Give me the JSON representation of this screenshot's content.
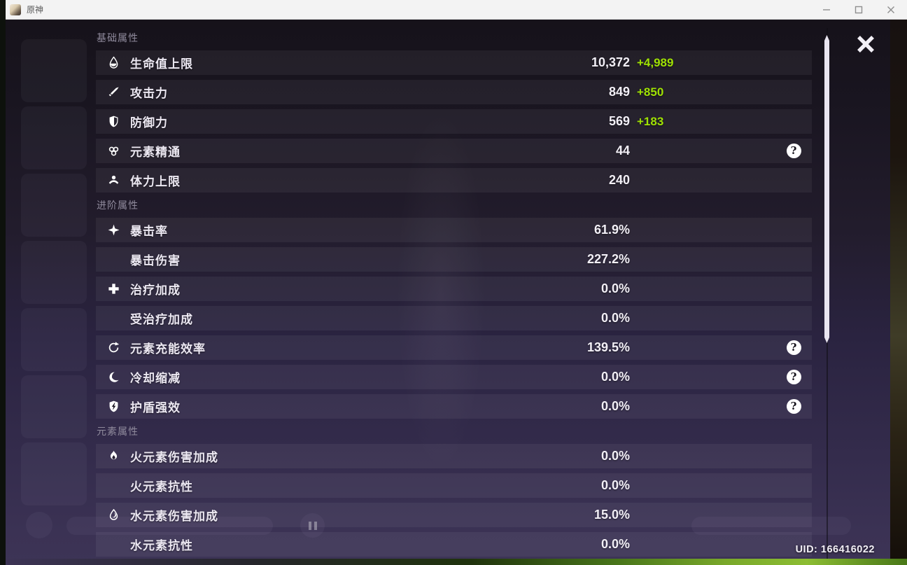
{
  "titlebar": {
    "title": "原神"
  },
  "panel": {
    "sections": [
      {
        "title": "基础属性",
        "rows": [
          {
            "icon": "hp-icon",
            "label": "生命值上限",
            "value": "10,372",
            "bonus": "+4,989",
            "help": false
          },
          {
            "icon": "atk-icon",
            "label": "攻击力",
            "value": "849",
            "bonus": "+850",
            "help": false
          },
          {
            "icon": "def-icon",
            "label": "防御力",
            "value": "569",
            "bonus": "+183",
            "help": false
          },
          {
            "icon": "elemental-mastery-icon",
            "label": "元素精通",
            "value": "44",
            "bonus": "",
            "help": true
          },
          {
            "icon": "stamina-icon",
            "label": "体力上限",
            "value": "240",
            "bonus": "",
            "help": false
          }
        ]
      },
      {
        "title": "进阶属性",
        "rows": [
          {
            "icon": "crit-rate-icon",
            "label": "暴击率",
            "value": "61.9%",
            "bonus": "",
            "help": false
          },
          {
            "icon": "",
            "label": "暴击伤害",
            "value": "227.2%",
            "bonus": "",
            "help": false
          },
          {
            "icon": "healing-icon",
            "label": "治疗加成",
            "value": "0.0%",
            "bonus": "",
            "help": false
          },
          {
            "icon": "",
            "label": "受治疗加成",
            "value": "0.0%",
            "bonus": "",
            "help": false
          },
          {
            "icon": "energy-recharge-icon",
            "label": "元素充能效率",
            "value": "139.5%",
            "bonus": "",
            "help": true
          },
          {
            "icon": "cooldown-icon",
            "label": "冷却缩减",
            "value": "0.0%",
            "bonus": "",
            "help": true
          },
          {
            "icon": "shield-strength-icon",
            "label": "护盾强效",
            "value": "0.0%",
            "bonus": "",
            "help": true
          }
        ]
      },
      {
        "title": "元素属性",
        "rows": [
          {
            "icon": "pyro-icon",
            "label": "火元素伤害加成",
            "value": "0.0%",
            "bonus": "",
            "help": false
          },
          {
            "icon": "",
            "label": "火元素抗性",
            "value": "0.0%",
            "bonus": "",
            "help": false
          },
          {
            "icon": "hydro-icon",
            "label": "水元素伤害加成",
            "value": "15.0%",
            "bonus": "",
            "help": false
          },
          {
            "icon": "",
            "label": "水元素抗性",
            "value": "0.0%",
            "bonus": "",
            "help": false
          }
        ]
      }
    ]
  },
  "help_glyph": "?",
  "footer": {
    "uid": "UID: 166416022"
  },
  "colors": {
    "bonus_green": "#9fe104",
    "panel_band": "rgba(255,255,255,0.055)",
    "grass": "#8cbd33"
  }
}
